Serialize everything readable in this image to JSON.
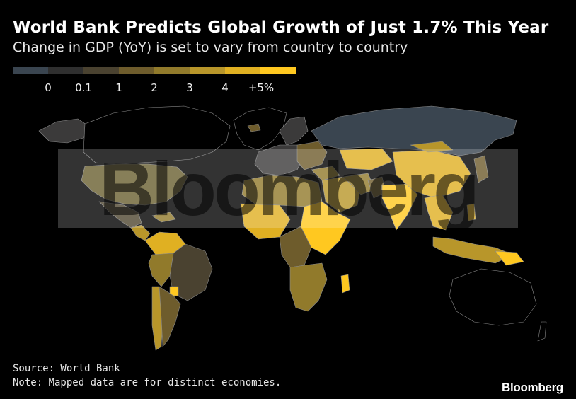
{
  "header": {
    "title": "World Bank Predicts Global Growth of Just 1.7% This Year",
    "subtitle": "Change in GDP (YoY) is set to vary from country to country"
  },
  "legend": {
    "swatches": [
      "#3a4550",
      "#2f2f2f",
      "#4a4230",
      "#6e5c2c",
      "#917a2b",
      "#b8962a",
      "#e0b022",
      "#ffc820"
    ],
    "labels": [
      {
        "text": "0",
        "value": 0
      },
      {
        "text": "0.1",
        "value": 0.1
      },
      {
        "text": "1",
        "value": 1
      },
      {
        "text": "2",
        "value": 2
      },
      {
        "text": "3",
        "value": 3
      },
      {
        "text": "4",
        "value": 4
      },
      {
        "text": "+5%",
        "value": 5
      }
    ]
  },
  "watermark": {
    "text": "Bloomberg"
  },
  "footer": {
    "source": "Source: World Bank",
    "note": "Note: Mapped data are for distinct economies.",
    "brand": "Bloomberg"
  },
  "colors": {
    "background": "#000000",
    "border": "#8a8a8a",
    "no_data": "#000000"
  }
}
